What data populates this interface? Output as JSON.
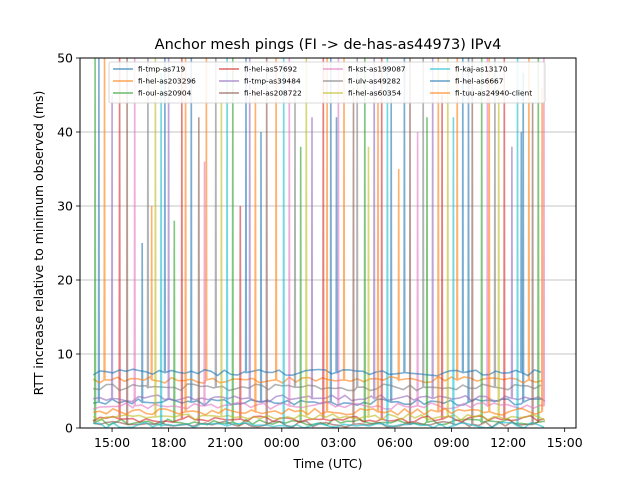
{
  "chart_data": {
    "type": "line",
    "title": "Anchor mesh pings (FI -> de-has-as44973) IPv4",
    "xlabel": "Time (UTC)",
    "ylabel": "RTT increase relative to minimum observed (ms)",
    "x_unit": "hours since 12:00 UTC",
    "xlim": [
      1.3,
      27.6
    ],
    "ylim": [
      0,
      50
    ],
    "xticks": [
      {
        "x": 3,
        "label": "15:00"
      },
      {
        "x": 6,
        "label": "18:00"
      },
      {
        "x": 9,
        "label": "21:00"
      },
      {
        "x": 12,
        "label": "00:00"
      },
      {
        "x": 15,
        "label": "03:00"
      },
      {
        "x": 18,
        "label": "06:00"
      },
      {
        "x": 21,
        "label": "09:00"
      },
      {
        "x": 24,
        "label": "12:00"
      },
      {
        "x": 27,
        "label": "15:00"
      }
    ],
    "yticks": [
      {
        "y": 0,
        "label": "0"
      },
      {
        "y": 10,
        "label": "10"
      },
      {
        "y": 20,
        "label": "20"
      },
      {
        "y": 30,
        "label": "30"
      },
      {
        "y": 40,
        "label": "40"
      },
      {
        "y": 50,
        "label": "50"
      }
    ],
    "grid": "horizontal",
    "legend_position": "top-center",
    "series": [
      {
        "name": "fi-tmp-as719",
        "color": "#1f77b4",
        "baseline": 3.5,
        "x": [
          2.0,
          26.0
        ],
        "spikes": [
          [
            2.3,
            50
          ],
          [
            4.6,
            25
          ],
          [
            7.2,
            50
          ],
          [
            10.9,
            40
          ],
          [
            14.6,
            50
          ],
          [
            17.8,
            45
          ],
          [
            21.9,
            50
          ],
          [
            24.8,
            48
          ]
        ]
      },
      {
        "name": "fi-hel-as203296",
        "color": "#ff7f0e",
        "baseline": 6.5,
        "x": [
          2.0,
          26.0
        ],
        "spikes": [
          [
            2.6,
            50
          ],
          [
            5.1,
            30
          ],
          [
            8.0,
            50
          ],
          [
            11.7,
            50
          ],
          [
            15.3,
            50
          ],
          [
            18.2,
            35
          ],
          [
            21.3,
            50
          ],
          [
            25.1,
            50
          ]
        ]
      },
      {
        "name": "fi-oul-as20904",
        "color": "#2ca02c",
        "baseline": 0.8,
        "x": [
          2.0,
          26.0
        ],
        "spikes": [
          [
            2.1,
            50
          ],
          [
            6.3,
            28
          ],
          [
            9.4,
            50
          ],
          [
            13.0,
            38
          ],
          [
            16.4,
            50
          ],
          [
            19.7,
            42
          ],
          [
            22.6,
            50
          ],
          [
            25.6,
            50
          ]
        ]
      },
      {
        "name": "fi-hel-as57692",
        "color": "#d62728",
        "baseline": 1.2,
        "x": [
          2.0,
          26.0
        ],
        "spikes": [
          [
            3.4,
            50
          ],
          [
            6.7,
            50
          ],
          [
            9.8,
            30
          ],
          [
            14.2,
            50
          ],
          [
            17.3,
            50
          ],
          [
            20.5,
            45
          ],
          [
            23.8,
            50
          ]
        ]
      },
      {
        "name": "fi-tmp-as39484",
        "color": "#9467bd",
        "baseline": 4.0,
        "x": [
          2.0,
          26.0
        ],
        "spikes": [
          [
            3.0,
            45
          ],
          [
            6.0,
            50
          ],
          [
            10.3,
            50
          ],
          [
            13.6,
            42
          ],
          [
            16.9,
            50
          ],
          [
            20.0,
            50
          ],
          [
            24.2,
            38
          ]
        ]
      },
      {
        "name": "fi-hel-as208722",
        "color": "#8c564b",
        "baseline": 0.5,
        "x": [
          2.0,
          26.0
        ],
        "spikes": [
          [
            3.8,
            50
          ],
          [
            7.6,
            42
          ],
          [
            11.2,
            50
          ],
          [
            15.8,
            46
          ],
          [
            18.8,
            50
          ],
          [
            22.1,
            50
          ],
          [
            25.3,
            44
          ]
        ]
      },
      {
        "name": "fi-kst-as199087",
        "color": "#e377c2",
        "baseline": 3.0,
        "x": [
          2.0,
          26.0
        ],
        "spikes": [
          [
            4.2,
            50
          ],
          [
            7.9,
            36
          ],
          [
            12.4,
            50
          ],
          [
            15.0,
            50
          ],
          [
            19.2,
            40
          ],
          [
            22.9,
            50
          ],
          [
            25.9,
            50
          ]
        ]
      },
      {
        "name": "fi-ulv-as49282",
        "color": "#7f7f7f",
        "baseline": 5.5,
        "x": [
          2.0,
          26.0
        ],
        "spikes": [
          [
            4.9,
            50
          ],
          [
            8.5,
            50
          ],
          [
            12.7,
            46
          ],
          [
            16.0,
            50
          ],
          [
            19.5,
            50
          ],
          [
            23.3,
            50
          ]
        ]
      },
      {
        "name": "fi-hel-as60354",
        "color": "#bcbd22",
        "baseline": 1.5,
        "x": [
          2.0,
          26.0
        ],
        "spikes": [
          [
            5.3,
            50
          ],
          [
            8.8,
            44
          ],
          [
            13.3,
            50
          ],
          [
            16.6,
            38
          ],
          [
            20.8,
            50
          ],
          [
            23.5,
            46
          ]
        ]
      },
      {
        "name": "fi-kaj-as13170",
        "color": "#17becf",
        "baseline": 0.3,
        "x": [
          2.0,
          26.0
        ],
        "spikes": [
          [
            5.6,
            48
          ],
          [
            9.1,
            50
          ],
          [
            12.1,
            50
          ],
          [
            17.6,
            50
          ],
          [
            21.1,
            42
          ],
          [
            24.5,
            50
          ]
        ]
      },
      {
        "name": "fi-hel-as6667",
        "color": "#1f77b4",
        "baseline": 7.5,
        "x": [
          2.0,
          26.0
        ],
        "spikes": [
          [
            5.8,
            50
          ],
          [
            10.1,
            50
          ],
          [
            14.9,
            42
          ],
          [
            18.5,
            50
          ],
          [
            21.6,
            50
          ],
          [
            24.7,
            40
          ]
        ]
      },
      {
        "name": "fi-tuu-as24940-client",
        "color": "#ff7f0e",
        "baseline": 2.2,
        "x": [
          2.0,
          26.0
        ],
        "spikes": [
          [
            6.9,
            50
          ],
          [
            10.6,
            46
          ],
          [
            14.4,
            50
          ],
          [
            17.1,
            44
          ],
          [
            20.3,
            50
          ],
          [
            23.0,
            50
          ],
          [
            25.8,
            46
          ]
        ]
      }
    ]
  }
}
